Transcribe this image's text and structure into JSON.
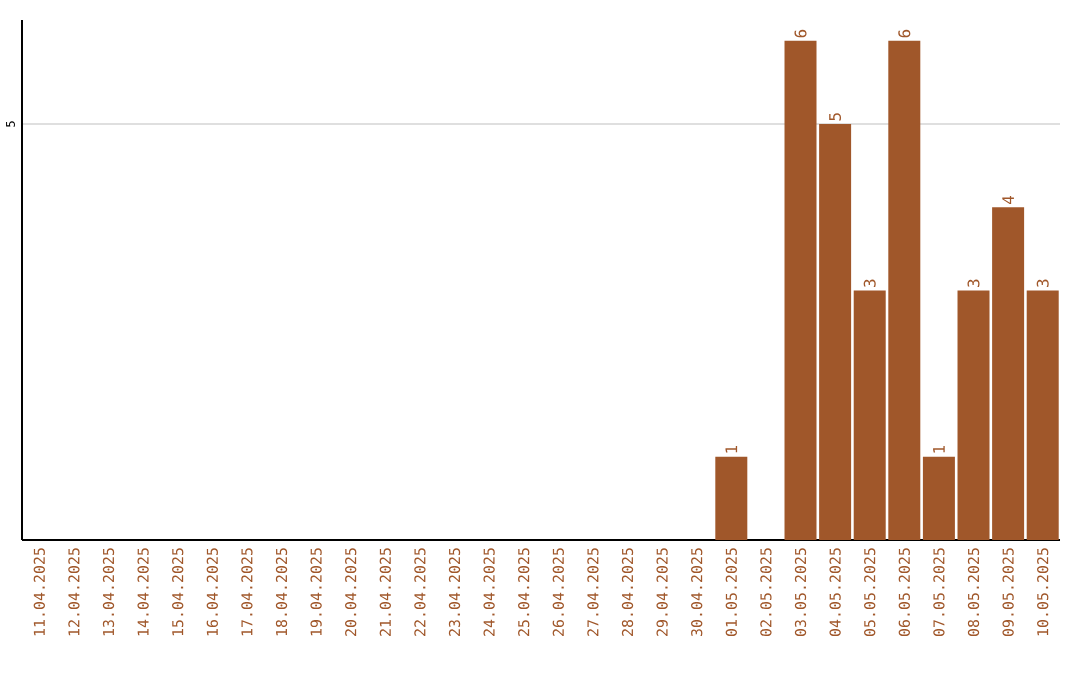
{
  "chart_data": {
    "type": "bar",
    "categories": [
      "11.04.2025",
      "12.04.2025",
      "13.04.2025",
      "14.04.2025",
      "15.04.2025",
      "16.04.2025",
      "17.04.2025",
      "18.04.2025",
      "19.04.2025",
      "20.04.2025",
      "21.04.2025",
      "22.04.2025",
      "23.04.2025",
      "24.04.2025",
      "25.04.2025",
      "26.04.2025",
      "27.04.2025",
      "28.04.2025",
      "29.04.2025",
      "30.04.2025",
      "01.05.2025",
      "02.05.2025",
      "03.05.2025",
      "04.05.2025",
      "05.05.2025",
      "06.05.2025",
      "07.05.2025",
      "08.05.2025",
      "09.05.2025",
      "10.05.2025"
    ],
    "values": [
      null,
      null,
      null,
      null,
      null,
      null,
      null,
      null,
      null,
      null,
      null,
      null,
      null,
      null,
      null,
      null,
      null,
      null,
      null,
      null,
      1,
      null,
      6,
      5,
      3,
      6,
      1,
      3,
      4,
      3
    ],
    "data_labels": true,
    "color": "#a0572a",
    "ylim": [
      0,
      6.25
    ],
    "yticks": [
      5
    ],
    "grid": "y",
    "legend": false
  }
}
